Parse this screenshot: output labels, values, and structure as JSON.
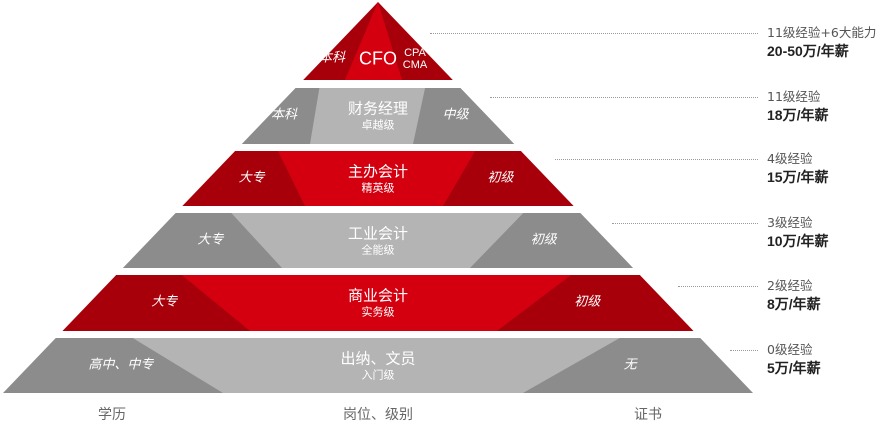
{
  "tiers": [
    {
      "left": "本科",
      "title": "CFO",
      "subtitle": "",
      "cert": "CPA\nCMA",
      "experience": "11级经验+6大能力",
      "salary": "20-50万/年薪",
      "theme": "red"
    },
    {
      "left": "本科",
      "title": "财务经理",
      "subtitle": "卓越级",
      "cert": "中级",
      "experience": "11级经验",
      "salary": "18万/年薪",
      "theme": "gray"
    },
    {
      "left": "大专",
      "title": "主办会计",
      "subtitle": "精英级",
      "cert": "初级",
      "experience": "4级经验",
      "salary": "15万/年薪",
      "theme": "red"
    },
    {
      "left": "大专",
      "title": "工业会计",
      "subtitle": "全能级",
      "cert": "初级",
      "experience": "3级经验",
      "salary": "10万/年薪",
      "theme": "gray"
    },
    {
      "left": "大专",
      "title": "商业会计",
      "subtitle": "实务级",
      "cert": "初级",
      "experience": "2级经验",
      "salary": "8万/年薪",
      "theme": "red"
    },
    {
      "left": "高中、中专",
      "title": "出纳、文员",
      "subtitle": "入门级",
      "cert": "无",
      "experience": "0级经验",
      "salary": "5万/年薪",
      "theme": "gray"
    }
  ],
  "footer": {
    "education": "学历",
    "position": "岗位、级别",
    "certificate": "证书"
  },
  "colors": {
    "red_side": "#a7000a",
    "red_center": "#d40010",
    "gray_side": "#8c8c8c",
    "gray_center": "#b4b4b4"
  }
}
